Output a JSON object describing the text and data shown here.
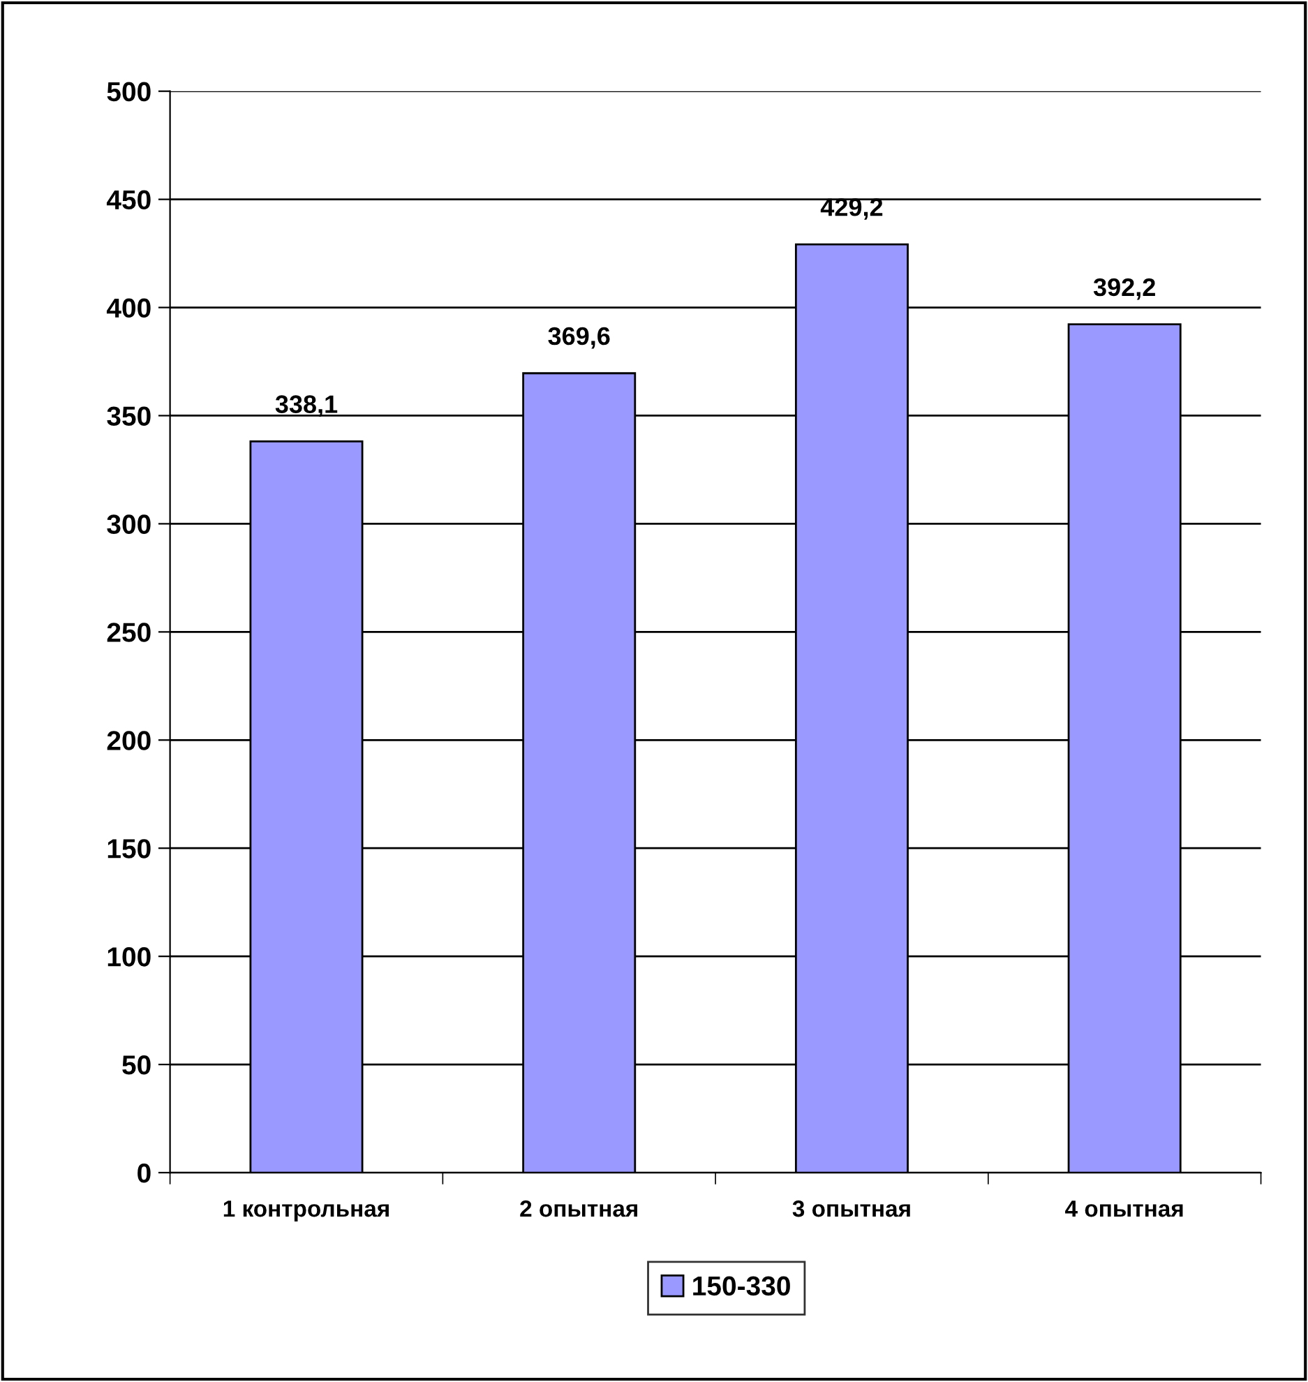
{
  "chart_data": {
    "type": "bar",
    "categories": [
      "1 контрольная",
      "2 опытная",
      "3 опытная",
      "4 опытная"
    ],
    "series": [
      {
        "name": "150-330",
        "color": "#9999ff",
        "values": [
          338.1,
          369.6,
          429.2,
          392.2
        ],
        "value_labels": [
          "338,1",
          "369,6",
          "429,2",
          "392,2"
        ]
      }
    ],
    "ylim": [
      0,
      500
    ],
    "yticks": [
      0,
      50,
      100,
      150,
      200,
      250,
      300,
      350,
      400,
      450,
      500
    ],
    "grid": "y",
    "legend": "bottom"
  }
}
